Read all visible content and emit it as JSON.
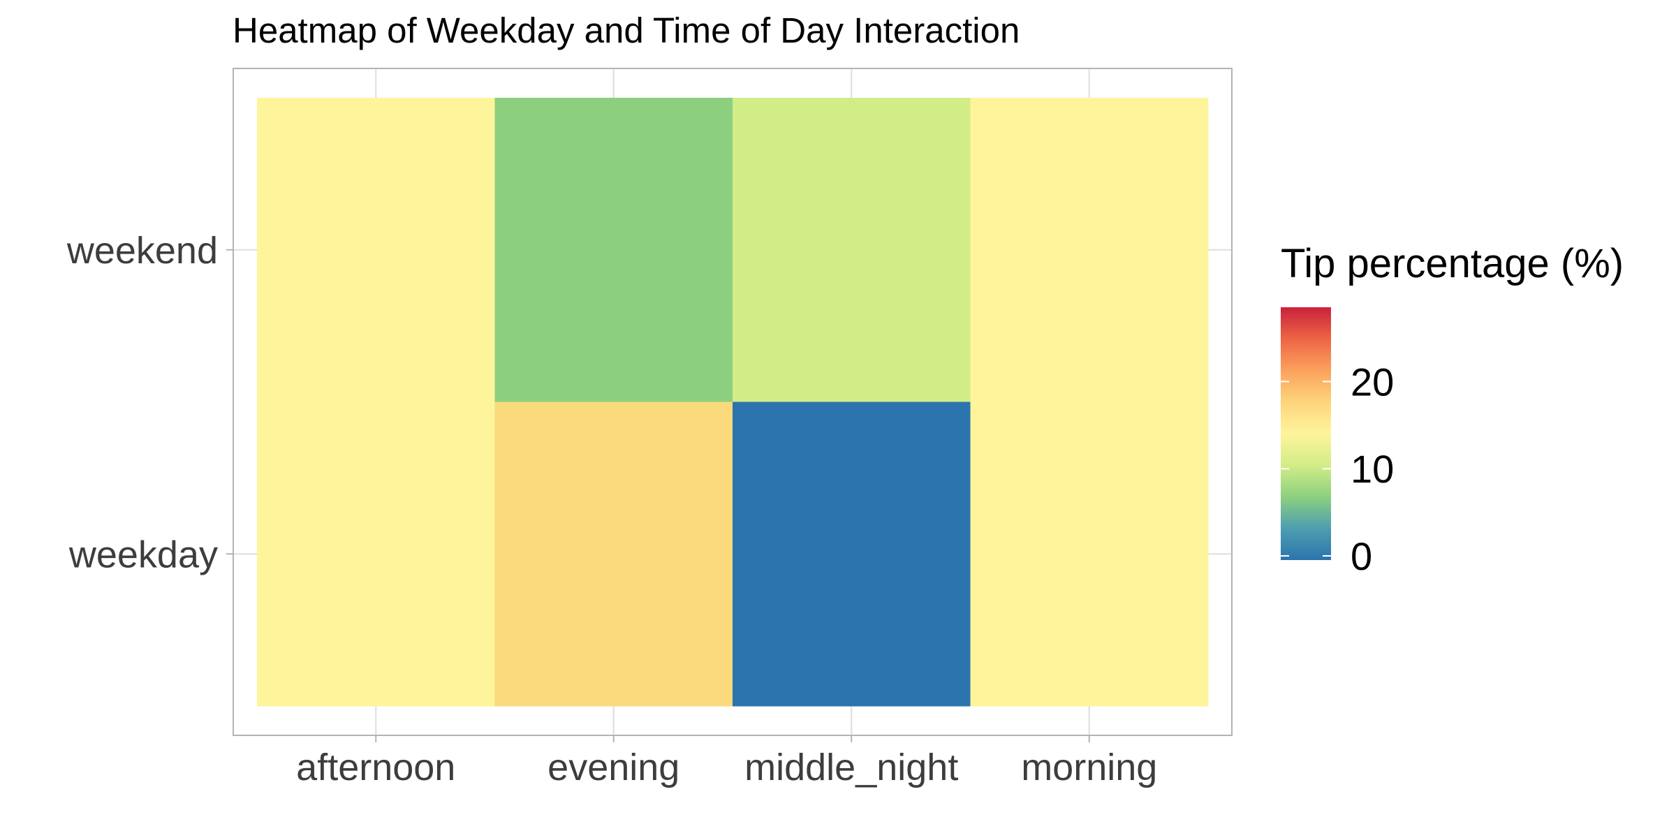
{
  "chart_data": {
    "type": "heatmap",
    "title": "Heatmap of Weekday and Time of Day Interaction",
    "xlabel": "",
    "ylabel": "",
    "x_categories": [
      "afternoon",
      "evening",
      "middle_night",
      "morning"
    ],
    "y_categories": [
      "weekday",
      "weekend"
    ],
    "cells": [
      {
        "x": "afternoon",
        "y": "weekend",
        "value": 16,
        "color": "#FEF49C"
      },
      {
        "x": "evening",
        "y": "weekend",
        "value": 7,
        "color": "#8CD07F"
      },
      {
        "x": "middle_night",
        "y": "weekend",
        "value": 11,
        "color": "#D2ED87"
      },
      {
        "x": "morning",
        "y": "weekend",
        "value": 16,
        "color": "#FEF49C"
      },
      {
        "x": "afternoon",
        "y": "weekday",
        "value": 16,
        "color": "#FEF49C"
      },
      {
        "x": "evening",
        "y": "weekday",
        "value": 19,
        "color": "#FADA7A"
      },
      {
        "x": "middle_night",
        "y": "weekday",
        "value": 0,
        "color": "#2B74AD"
      },
      {
        "x": "morning",
        "y": "weekday",
        "value": 16,
        "color": "#FEF49C"
      }
    ],
    "legend": {
      "title": "Tip percentage (%)",
      "position": "right",
      "ticks": [
        0,
        10,
        20
      ],
      "tick_labels": [
        "0",
        "10",
        "20"
      ],
      "range": [
        0,
        29
      ],
      "gradient": [
        "#2B74AD",
        "#4E9EB0",
        "#8CD07F",
        "#D2ED87",
        "#FEF49C",
        "#FDD57C",
        "#FBA25C",
        "#EE6445",
        "#C9223B"
      ]
    },
    "grid": true,
    "panel_border": true
  }
}
